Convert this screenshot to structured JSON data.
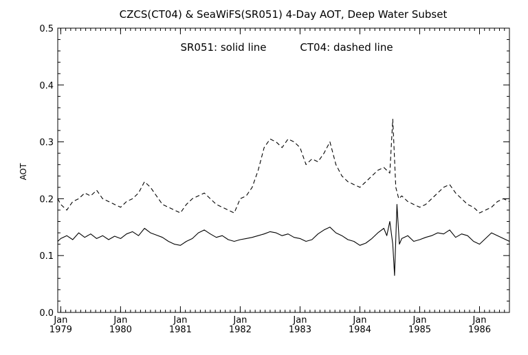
{
  "chart_data": {
    "type": "line",
    "title": "CZCS(CT04) & SeaWiFS(SR051) 4-Day AOT, Deep Water Subset",
    "annotation": {
      "solid": "SR051: solid line",
      "dashed": "CT04: dashed line"
    },
    "ylabel": "AOT",
    "xlabel": "",
    "ylim": [
      0.0,
      0.5
    ],
    "xlim": [
      1978.95,
      1986.5
    ],
    "y_ticks": [
      "0.0",
      "0.1",
      "0.2",
      "0.3",
      "0.4",
      "0.5"
    ],
    "y_tick_values": [
      0.0,
      0.1,
      0.2,
      0.3,
      0.4,
      0.5
    ],
    "x_ticks": [
      {
        "value": 1979,
        "month": "Jan",
        "year": "1979"
      },
      {
        "value": 1980,
        "month": "Jan",
        "year": "1980"
      },
      {
        "value": 1981,
        "month": "Jan",
        "year": "1981"
      },
      {
        "value": 1982,
        "month": "Jan",
        "year": "1982"
      },
      {
        "value": 1983,
        "month": "Jan",
        "year": "1983"
      },
      {
        "value": 1984,
        "month": "Jan",
        "year": "1984"
      },
      {
        "value": 1985,
        "month": "Jan",
        "year": "1985"
      },
      {
        "value": 1986,
        "month": "Jan",
        "year": "1986"
      }
    ],
    "grid": false,
    "legend": "none",
    "series": [
      {
        "name": "SR051",
        "style": "solid",
        "x": [
          1978.95,
          1979.0,
          1979.1,
          1979.2,
          1979.3,
          1979.4,
          1979.5,
          1979.6,
          1979.7,
          1979.8,
          1979.9,
          1980.0,
          1980.1,
          1980.2,
          1980.3,
          1980.4,
          1980.5,
          1980.6,
          1980.7,
          1980.8,
          1980.9,
          1981.0,
          1981.1,
          1981.2,
          1981.3,
          1981.4,
          1981.5,
          1981.6,
          1981.7,
          1981.8,
          1981.9,
          1982.0,
          1982.1,
          1982.2,
          1982.3,
          1982.4,
          1982.5,
          1982.6,
          1982.7,
          1982.8,
          1982.9,
          1983.0,
          1983.1,
          1983.2,
          1983.3,
          1983.4,
          1983.5,
          1983.6,
          1983.7,
          1983.8,
          1983.9,
          1984.0,
          1984.1,
          1984.2,
          1984.3,
          1984.4,
          1984.45,
          1984.5,
          1984.55,
          1984.58,
          1984.62,
          1984.66,
          1984.7,
          1984.8,
          1984.9,
          1985.0,
          1985.1,
          1985.2,
          1985.3,
          1985.4,
          1985.5,
          1985.6,
          1985.7,
          1985.8,
          1985.9,
          1986.0,
          1986.1,
          1986.2,
          1986.3,
          1986.4,
          1986.5
        ],
        "values": [
          0.125,
          0.13,
          0.135,
          0.128,
          0.14,
          0.132,
          0.138,
          0.13,
          0.135,
          0.128,
          0.134,
          0.13,
          0.138,
          0.142,
          0.135,
          0.148,
          0.14,
          0.136,
          0.132,
          0.125,
          0.12,
          0.118,
          0.125,
          0.13,
          0.14,
          0.145,
          0.138,
          0.132,
          0.135,
          0.128,
          0.125,
          0.128,
          0.13,
          0.132,
          0.135,
          0.138,
          0.142,
          0.14,
          0.135,
          0.138,
          0.132,
          0.13,
          0.125,
          0.128,
          0.138,
          0.145,
          0.15,
          0.14,
          0.135,
          0.128,
          0.125,
          0.118,
          0.122,
          0.13,
          0.14,
          0.148,
          0.135,
          0.16,
          0.12,
          0.065,
          0.19,
          0.12,
          0.13,
          0.135,
          0.125,
          0.128,
          0.132,
          0.135,
          0.14,
          0.138,
          0.145,
          0.132,
          0.138,
          0.135,
          0.125,
          0.12,
          0.13,
          0.14,
          0.135,
          0.13,
          0.125
        ]
      },
      {
        "name": "CT04",
        "style": "dashed",
        "x": [
          1978.95,
          1979.0,
          1979.1,
          1979.2,
          1979.3,
          1979.4,
          1979.5,
          1979.6,
          1979.7,
          1979.8,
          1979.9,
          1980.0,
          1980.1,
          1980.2,
          1980.3,
          1980.4,
          1980.5,
          1980.6,
          1980.7,
          1980.8,
          1980.9,
          1981.0,
          1981.1,
          1981.2,
          1981.3,
          1981.4,
          1981.5,
          1981.6,
          1981.7,
          1981.8,
          1981.9,
          1982.0,
          1982.1,
          1982.2,
          1982.3,
          1982.4,
          1982.5,
          1982.6,
          1982.7,
          1982.8,
          1982.9,
          1983.0,
          1983.1,
          1983.2,
          1983.3,
          1983.4,
          1983.5,
          1983.6,
          1983.7,
          1983.8,
          1983.9,
          1984.0,
          1984.1,
          1984.2,
          1984.3,
          1984.4,
          1984.5,
          1984.55,
          1984.6,
          1984.65,
          1984.7,
          1984.8,
          1984.9,
          1985.0,
          1985.1,
          1985.2,
          1985.3,
          1985.4,
          1985.5,
          1985.6,
          1985.7,
          1985.8,
          1985.9,
          1986.0,
          1986.1,
          1986.2,
          1986.3,
          1986.4,
          1986.5
        ],
        "values": [
          0.2,
          0.19,
          0.18,
          0.195,
          0.2,
          0.21,
          0.205,
          0.215,
          0.2,
          0.195,
          0.19,
          0.185,
          0.195,
          0.2,
          0.21,
          0.23,
          0.22,
          0.205,
          0.19,
          0.185,
          0.18,
          0.175,
          0.19,
          0.2,
          0.205,
          0.21,
          0.2,
          0.19,
          0.185,
          0.18,
          0.175,
          0.2,
          0.205,
          0.22,
          0.25,
          0.29,
          0.305,
          0.3,
          0.29,
          0.305,
          0.3,
          0.29,
          0.26,
          0.27,
          0.265,
          0.28,
          0.3,
          0.26,
          0.24,
          0.23,
          0.225,
          0.22,
          0.23,
          0.24,
          0.25,
          0.255,
          0.245,
          0.34,
          0.22,
          0.2,
          0.205,
          0.195,
          0.19,
          0.185,
          0.19,
          0.2,
          0.21,
          0.22,
          0.225,
          0.21,
          0.2,
          0.19,
          0.185,
          0.175,
          0.18,
          0.185,
          0.195,
          0.2,
          0.195
        ]
      }
    ]
  }
}
